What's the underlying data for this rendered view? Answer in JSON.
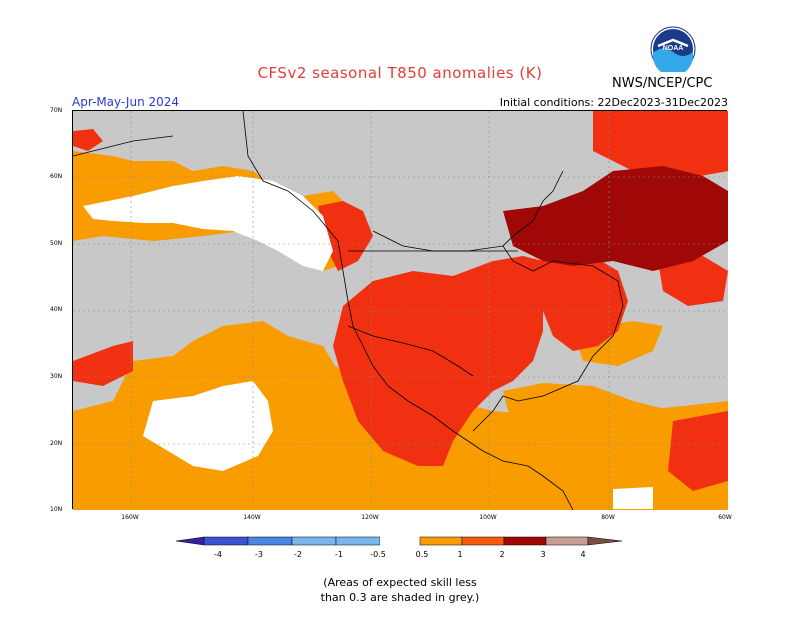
{
  "header": {
    "title": "CFSv2 seasonal T850 anomalies (K)",
    "period": "Apr-May-Jun 2024",
    "initial_conditions": "Initial conditions: 22Dec2023-31Dec2023",
    "agency": "NWS/NCEP/CPC"
  },
  "logo": {
    "text": "NOAA",
    "icon": "noaa-logo-icon"
  },
  "map": {
    "lat_labels": [
      "70N",
      "60N",
      "50N",
      "40N",
      "30N",
      "20N",
      "10N"
    ],
    "lon_labels": [
      "160W",
      "140W",
      "120W",
      "100W",
      "80W",
      "60W"
    ],
    "no_skill_color": "#c8c8c8"
  },
  "legend": {
    "labels": [
      "-4",
      "-3",
      "-2",
      "-1",
      "-0.5",
      "0.5",
      "1",
      "2",
      "3",
      "4"
    ],
    "colors": {
      "neg4": "#3a1fa0",
      "neg3": "#3c52d1",
      "neg2": "#4c86e4",
      "neg1": "#79b6ee",
      "neutral": "#ffffff",
      "pos05": "#f89c00",
      "pos1": "#f85a10",
      "pos2": "#f03010",
      "pos3": "#a00808",
      "pos4": "#c89c90",
      "pos5": "#7a4d44"
    }
  },
  "note": {
    "line1": "(Areas of expected skill less",
    "line2": "than 0.3 are shaded in grey.)"
  }
}
